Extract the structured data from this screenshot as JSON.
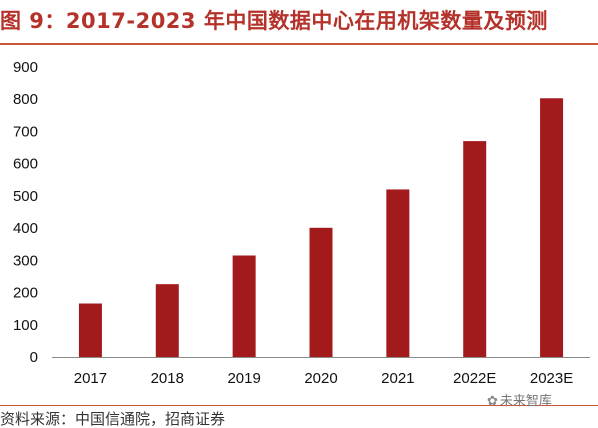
{
  "title": "图 9：2017-2023 年中国数据中心在用机架数量及预测",
  "source": "资料来源：中国信通院，招商证券",
  "watermark": {
    "icon": "paw-icon",
    "text": "未来智库"
  },
  "colors": {
    "bar": "#a31a1c",
    "title": "#b5322b",
    "rule": "#c9553a"
  },
  "chart_data": {
    "type": "bar",
    "title": "图 9：2017-2023 年中国数据中心在用机架数量及预测",
    "xlabel": "",
    "ylabel": "",
    "categories": [
      "2017",
      "2018",
      "2019",
      "2020",
      "2021",
      "2022E",
      "2023E"
    ],
    "values": [
      166,
      226,
      315,
      401,
      520,
      670,
      803
    ],
    "ylim": [
      0,
      900
    ],
    "yticks": [
      "0",
      "100",
      "200",
      "300",
      "400",
      "500",
      "600",
      "700",
      "800",
      "900"
    ],
    "grid": false,
    "legend": "none"
  }
}
